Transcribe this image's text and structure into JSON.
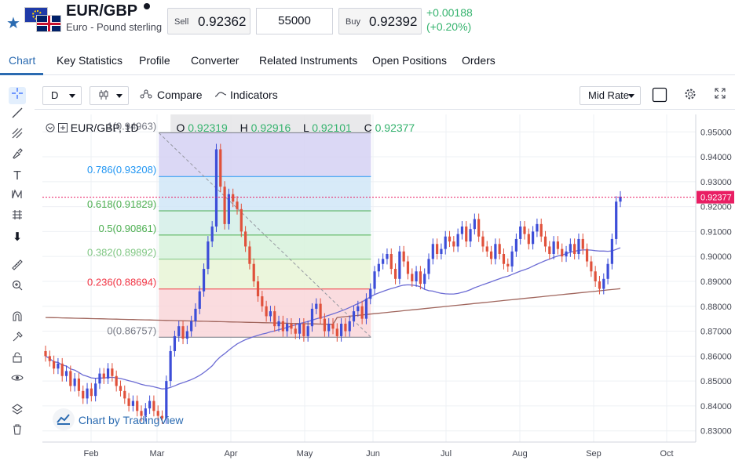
{
  "header": {
    "symbol": "EUR/GBP",
    "name": "Euro - Pound sterling",
    "sell_label": "Sell",
    "sell_price": "0.92362",
    "quantity": "55000",
    "buy_label": "Buy",
    "buy_price": "0.92392",
    "change_abs": "+0.00188",
    "change_pct": "(+0.20%)",
    "change_color": "#35b36e"
  },
  "tabs": [
    "Chart",
    "Key Statistics",
    "Profile",
    "Converter",
    "Related Instruments",
    "Open Positions",
    "Orders"
  ],
  "toolbar": {
    "interval": "D",
    "compare": "Compare",
    "indicators": "Indicators",
    "price_type": "Mid Rate"
  },
  "left_tools": [
    "crosshair-icon",
    "trendline-icon",
    "pitchfork-icon",
    "brush-icon",
    "text-icon",
    "pattern-icon",
    "prediction-icon",
    "arrow-down-icon",
    "ruler-icon",
    "zoom-in-icon",
    "magnet-icon",
    "lock-drawing-icon",
    "lock-icon",
    "eye-icon",
    "layers-icon",
    "trash-icon"
  ],
  "legend": {
    "title": "EUR/GBP, 1D",
    "o_label": "O",
    "o": "0.92319",
    "h_label": "H",
    "h": "0.92916",
    "l_label": "L",
    "l": "0.92101",
    "c_label": "C",
    "c": "0.92377"
  },
  "watermark": "Chart by TradingView",
  "chart_data": {
    "type": "candlestick",
    "y_ticks": [
      "0.95000",
      "0.94000",
      "0.93000",
      "0.92000",
      "0.91000",
      "0.90000",
      "0.89000",
      "0.88000",
      "0.87000",
      "0.86000",
      "0.85000",
      "0.84000",
      "0.83000"
    ],
    "x_ticks": [
      "Feb",
      "Mar",
      "Apr",
      "May",
      "Jun",
      "Jul",
      "Aug",
      "Sep",
      "Oct"
    ],
    "ylim": [
      0.8255,
      0.957
    ],
    "last_price_label": "0.92377",
    "last_price": 0.92377,
    "fibonacci": [
      {
        "label": "1(0.94963)",
        "value": 0.94963,
        "color": "#787b86"
      },
      {
        "label": "0.786(0.93208)",
        "value": 0.93208,
        "color": "#2196f3"
      },
      {
        "label": "0.618(0.91829)",
        "value": 0.91829,
        "color": "#4caf50"
      },
      {
        "label": "0.5(0.90861)",
        "value": 0.90861,
        "color": "#4caf50"
      },
      {
        "label": "0.382(0.89892)",
        "value": 0.89892,
        "color": "#81c784"
      },
      {
        "label": "0.236(0.88694)",
        "value": 0.88694,
        "color": "#f23645"
      },
      {
        "label": "0(0.86757)",
        "value": 0.86757,
        "color": "#787b86"
      }
    ],
    "candles_close": [
      0.86,
      0.858,
      0.855,
      0.857,
      0.852,
      0.854,
      0.848,
      0.851,
      0.846,
      0.843,
      0.847,
      0.844,
      0.849,
      0.853,
      0.851,
      0.855,
      0.852,
      0.848,
      0.846,
      0.843,
      0.84,
      0.842,
      0.838,
      0.836,
      0.839,
      0.842,
      0.838,
      0.836,
      0.835,
      0.85,
      0.862,
      0.868,
      0.872,
      0.867,
      0.87,
      0.874,
      0.879,
      0.886,
      0.895,
      0.906,
      0.912,
      0.943,
      0.928,
      0.913,
      0.925,
      0.922,
      0.919,
      0.91,
      0.904,
      0.897,
      0.89,
      0.884,
      0.88,
      0.876,
      0.878,
      0.872,
      0.874,
      0.87,
      0.873,
      0.871,
      0.869,
      0.873,
      0.868,
      0.872,
      0.879,
      0.881,
      0.875,
      0.87,
      0.873,
      0.871,
      0.868,
      0.873,
      0.87,
      0.874,
      0.878,
      0.88,
      0.875,
      0.883,
      0.887,
      0.894,
      0.897,
      0.899,
      0.901,
      0.895,
      0.891,
      0.902,
      0.898,
      0.893,
      0.89,
      0.894,
      0.889,
      0.893,
      0.899,
      0.905,
      0.901,
      0.903,
      0.908,
      0.906,
      0.904,
      0.909,
      0.912,
      0.906,
      0.911,
      0.915,
      0.908,
      0.904,
      0.902,
      0.899,
      0.905,
      0.901,
      0.897,
      0.896,
      0.902,
      0.907,
      0.912,
      0.909,
      0.905,
      0.91,
      0.913,
      0.908,
      0.904,
      0.901,
      0.906,
      0.903,
      0.9,
      0.902,
      0.905,
      0.901,
      0.907,
      0.903,
      0.898,
      0.894,
      0.89,
      0.887,
      0.891,
      0.897,
      0.907,
      0.922,
      0.924
    ],
    "ma_short_color": "#6c6cd4",
    "ma_long_color": "#a0655c",
    "up_color": "#3d4ed8",
    "down_color": "#e0513b"
  }
}
